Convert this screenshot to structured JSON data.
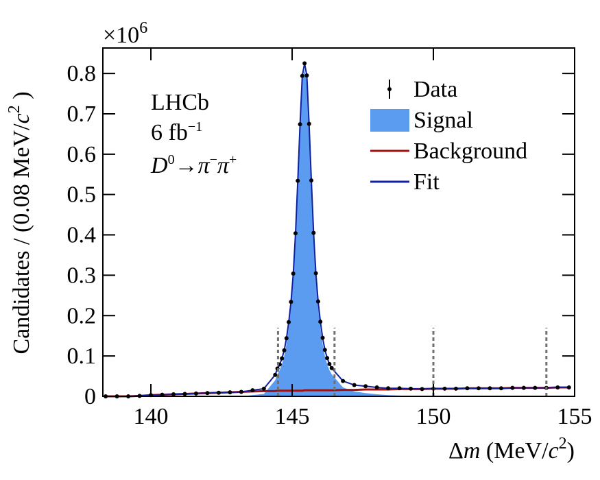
{
  "chart_data": {
    "type": "line",
    "x_label": {
      "symbol": "Δ",
      "var": "m",
      "text": " (MeV/",
      "unit_var": "c",
      "exp": "2",
      "close": ")"
    },
    "y_label": {
      "text": "Candidates / (0.08 MeV/",
      "var": "c",
      "exp": "2",
      "close": " )"
    },
    "y_multiplier": {
      "base": "×10",
      "exp": "6"
    },
    "annotation": {
      "experiment": "LHCb",
      "lumi": "6 fb",
      "lumi_exp": "−1",
      "decay": {
        "parent": "D",
        "parent_exp": "0",
        "arrow": "→",
        "d1": "π",
        "d1_exp": "−",
        "d2": "π",
        "d2_exp": "+"
      }
    },
    "xlim": [
      138.3,
      155
    ],
    "ylim": [
      0,
      0.863
    ],
    "xticks": [
      140,
      145,
      150,
      155
    ],
    "yticks": [
      0,
      0.1,
      0.2,
      0.3,
      0.4,
      0.5,
      0.6,
      0.7,
      0.8
    ],
    "reference_lines": {
      "x": [
        144.5,
        146.5,
        150,
        154
      ],
      "top": 0.17,
      "color": "#707070"
    },
    "legend": "upper right",
    "x": [
      138.4,
      138.8,
      139.2,
      139.6,
      140,
      140.4,
      140.8,
      141.2,
      141.6,
      142,
      142.4,
      142.8,
      143.2,
      143.6,
      144,
      144.4,
      144.48,
      144.56,
      144.64,
      144.72,
      144.8,
      144.88,
      144.96,
      145.04,
      145.12,
      145.2,
      145.28,
      145.36,
      145.44,
      145.52,
      145.6,
      145.68,
      145.76,
      145.84,
      145.92,
      146,
      146.08,
      146.16,
      146.24,
      146.32,
      146.4,
      146.8,
      147.2,
      147.6,
      148,
      148.4,
      148.8,
      149.2,
      149.6,
      150,
      150.4,
      150.8,
      151.2,
      151.6,
      152,
      152.4,
      152.8,
      153.2,
      153.6,
      154,
      154.4,
      154.8
    ],
    "series": [
      {
        "name": "Data",
        "type": "scatter",
        "color": "#000000",
        "values": [
          0,
          0,
          0,
          0.001,
          0.003,
          0.004,
          0.005,
          0.006,
          0.007,
          0.008,
          0.009,
          0.01,
          0.011,
          0.015,
          0.019,
          0.053,
          0.069,
          0.079,
          0.094,
          0.114,
          0.144,
          0.184,
          0.234,
          0.304,
          0.404,
          0.534,
          0.674,
          0.794,
          0.825,
          0.795,
          0.675,
          0.535,
          0.405,
          0.305,
          0.235,
          0.185,
          0.145,
          0.115,
          0.095,
          0.08,
          0.07,
          0.038,
          0.028,
          0.025,
          0.022,
          0.02,
          0.02,
          0.019,
          0.018,
          0.019,
          0.019,
          0.019,
          0.02,
          0.02,
          0.02,
          0.02,
          0.021,
          0.021,
          0.021,
          0.021,
          0.022,
          0.022
        ]
      },
      {
        "name": "Signal",
        "type": "area",
        "color": "#5b9bf0",
        "values": [
          0,
          0,
          0,
          0,
          0,
          0,
          0,
          0,
          0,
          0,
          0,
          0,
          0,
          0.003,
          0.006,
          0.04,
          0.055,
          0.065,
          0.08,
          0.1,
          0.13,
          0.17,
          0.22,
          0.29,
          0.39,
          0.52,
          0.66,
          0.78,
          0.81,
          0.78,
          0.66,
          0.52,
          0.39,
          0.29,
          0.22,
          0.17,
          0.13,
          0.1,
          0.08,
          0.065,
          0.055,
          0.022,
          0.012,
          0.008,
          0.005,
          0.003,
          0.002,
          0.001,
          0,
          0,
          0,
          0,
          0,
          0,
          0,
          0,
          0,
          0,
          0,
          0,
          0,
          0
        ]
      },
      {
        "name": "Background",
        "type": "line",
        "color": "#a01010",
        "values": [
          0,
          0,
          0,
          0.001,
          0.003,
          0.004,
          0.005,
          0.006,
          0.007,
          0.008,
          0.009,
          0.01,
          0.011,
          0.012,
          0.013,
          0.013,
          0.014,
          0.014,
          0.014,
          0.014,
          0.014,
          0.014,
          0.014,
          0.014,
          0.014,
          0.014,
          0.014,
          0.014,
          0.015,
          0.015,
          0.015,
          0.015,
          0.015,
          0.015,
          0.015,
          0.015,
          0.015,
          0.015,
          0.015,
          0.015,
          0.015,
          0.016,
          0.016,
          0.017,
          0.017,
          0.017,
          0.018,
          0.018,
          0.018,
          0.019,
          0.019,
          0.019,
          0.02,
          0.02,
          0.02,
          0.02,
          0.021,
          0.021,
          0.021,
          0.021,
          0.022,
          0.022
        ]
      },
      {
        "name": "Fit",
        "type": "line",
        "color": "#1020a0",
        "values": [
          0,
          0,
          0,
          0.001,
          0.003,
          0.004,
          0.005,
          0.006,
          0.007,
          0.008,
          0.009,
          0.01,
          0.011,
          0.015,
          0.019,
          0.053,
          0.069,
          0.079,
          0.094,
          0.114,
          0.144,
          0.184,
          0.234,
          0.304,
          0.404,
          0.534,
          0.674,
          0.794,
          0.825,
          0.795,
          0.675,
          0.535,
          0.405,
          0.305,
          0.235,
          0.185,
          0.145,
          0.115,
          0.095,
          0.08,
          0.07,
          0.038,
          0.028,
          0.025,
          0.022,
          0.02,
          0.02,
          0.019,
          0.018,
          0.019,
          0.019,
          0.019,
          0.02,
          0.02,
          0.02,
          0.02,
          0.021,
          0.021,
          0.021,
          0.021,
          0.022,
          0.022
        ]
      }
    ]
  }
}
